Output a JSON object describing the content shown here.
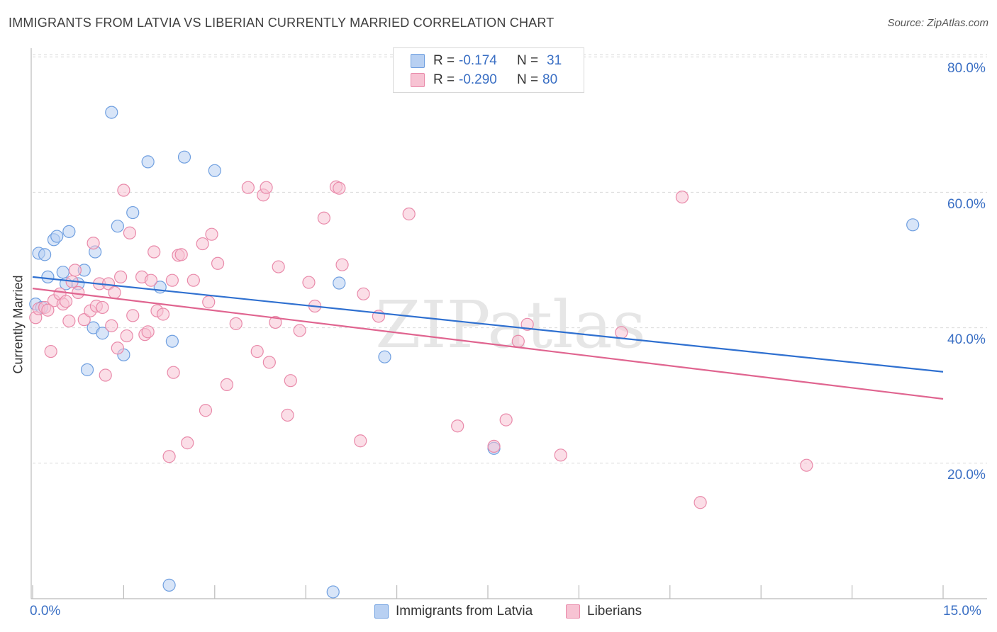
{
  "title": "IMMIGRANTS FROM LATVIA VS LIBERIAN CURRENTLY MARRIED CORRELATION CHART",
  "source": "Source: ZipAtlas.com",
  "watermark": "ZIPatlas",
  "colors": {
    "latvia": "#6f9fe0",
    "latvia_fill": "#b8d0f2",
    "latvia_line": "#2f70d0",
    "liberia": "#e98aaa",
    "liberia_fill": "#f7c3d3",
    "liberia_line": "#e06590",
    "accent_text": "#3a6fc4",
    "grid": "#d9d9d9"
  },
  "legend": {
    "rows": [
      {
        "r_label": "R =",
        "r_value": "-0.174",
        "n_label": "N =",
        "n_value": "31"
      },
      {
        "r_label": "R =",
        "r_value": "-0.290",
        "n_label": "N = ",
        "n_value": "80"
      }
    ]
  },
  "chart_data": {
    "type": "scatter",
    "title": "IMMIGRANTS FROM LATVIA VS LIBERIAN CURRENTLY MARRIED CORRELATION CHART",
    "xlabel": "",
    "ylabel": "Currently Married",
    "xlim": [
      0,
      15
    ],
    "ylim": [
      0,
      82
    ],
    "x_tick_labels": [
      "0.0%",
      "15.0%"
    ],
    "y_ticks": [
      20,
      40,
      60,
      80
    ],
    "y_tick_labels": [
      "20.0%",
      "40.0%",
      "60.0%",
      "80.0%"
    ],
    "grid": true,
    "legend_position": "top-center",
    "series": [
      {
        "name": "Immigrants from Latvia",
        "r": -0.174,
        "n": 31,
        "trend": {
          "x": [
            0,
            15
          ],
          "y": [
            47.5,
            33.5
          ]
        },
        "points": [
          {
            "x": 0.1,
            "y": 51.0
          },
          {
            "x": 0.2,
            "y": 50.8
          },
          {
            "x": 0.25,
            "y": 47.5
          },
          {
            "x": 0.35,
            "y": 53.0
          },
          {
            "x": 0.4,
            "y": 53.5
          },
          {
            "x": 0.5,
            "y": 48.2
          },
          {
            "x": 0.55,
            "y": 46.5
          },
          {
            "x": 0.6,
            "y": 54.2
          },
          {
            "x": 0.75,
            "y": 46.5
          },
          {
            "x": 0.85,
            "y": 48.5
          },
          {
            "x": 0.9,
            "y": 33.8
          },
          {
            "x": 1.0,
            "y": 40.0
          },
          {
            "x": 1.03,
            "y": 51.2
          },
          {
            "x": 1.15,
            "y": 39.2
          },
          {
            "x": 1.3,
            "y": 71.8
          },
          {
            "x": 1.4,
            "y": 55.0
          },
          {
            "x": 1.5,
            "y": 36.0
          },
          {
            "x": 1.65,
            "y": 57.0
          },
          {
            "x": 1.9,
            "y": 64.5
          },
          {
            "x": 2.1,
            "y": 46.0
          },
          {
            "x": 2.25,
            "y": 2.0
          },
          {
            "x": 2.3,
            "y": 38.0
          },
          {
            "x": 2.5,
            "y": 65.2
          },
          {
            "x": 3.0,
            "y": 63.2
          },
          {
            "x": 4.95,
            "y": 1.0
          },
          {
            "x": 5.05,
            "y": 46.6
          },
          {
            "x": 5.8,
            "y": 35.7
          },
          {
            "x": 7.6,
            "y": 22.2
          },
          {
            "x": 14.5,
            "y": 55.2
          },
          {
            "x": 0.05,
            "y": 43.5
          },
          {
            "x": 0.15,
            "y": 43.0
          }
        ]
      },
      {
        "name": "Liberians",
        "r": -0.29,
        "n": 80,
        "trend": {
          "x": [
            0,
            15
          ],
          "y": [
            45.8,
            29.5
          ]
        },
        "points": [
          {
            "x": 0.05,
            "y": 41.5
          },
          {
            "x": 0.1,
            "y": 42.8
          },
          {
            "x": 0.2,
            "y": 43.0
          },
          {
            "x": 0.3,
            "y": 36.5
          },
          {
            "x": 0.35,
            "y": 44.0
          },
          {
            "x": 0.45,
            "y": 45.0
          },
          {
            "x": 0.5,
            "y": 43.5
          },
          {
            "x": 0.6,
            "y": 41.0
          },
          {
            "x": 0.65,
            "y": 46.8
          },
          {
            "x": 0.7,
            "y": 48.5
          },
          {
            "x": 0.75,
            "y": 45.2
          },
          {
            "x": 0.85,
            "y": 41.2
          },
          {
            "x": 0.95,
            "y": 42.5
          },
          {
            "x": 1.0,
            "y": 52.5
          },
          {
            "x": 1.05,
            "y": 43.2
          },
          {
            "x": 1.1,
            "y": 46.5
          },
          {
            "x": 1.15,
            "y": 43.0
          },
          {
            "x": 1.2,
            "y": 33.0
          },
          {
            "x": 1.25,
            "y": 46.5
          },
          {
            "x": 1.3,
            "y": 40.3
          },
          {
            "x": 1.35,
            "y": 45.2
          },
          {
            "x": 1.4,
            "y": 37.0
          },
          {
            "x": 1.5,
            "y": 60.3
          },
          {
            "x": 1.55,
            "y": 38.8
          },
          {
            "x": 1.6,
            "y": 54.0
          },
          {
            "x": 1.65,
            "y": 41.8
          },
          {
            "x": 1.8,
            "y": 47.5
          },
          {
            "x": 1.85,
            "y": 39.0
          },
          {
            "x": 1.9,
            "y": 39.4
          },
          {
            "x": 1.95,
            "y": 47.0
          },
          {
            "x": 2.0,
            "y": 51.2
          },
          {
            "x": 2.05,
            "y": 42.5
          },
          {
            "x": 2.15,
            "y": 42.0
          },
          {
            "x": 2.25,
            "y": 21.0
          },
          {
            "x": 2.3,
            "y": 47.0
          },
          {
            "x": 2.32,
            "y": 33.4
          },
          {
            "x": 2.4,
            "y": 50.7
          },
          {
            "x": 2.45,
            "y": 50.8
          },
          {
            "x": 2.55,
            "y": 23.0
          },
          {
            "x": 2.65,
            "y": 47.0
          },
          {
            "x": 2.8,
            "y": 52.4
          },
          {
            "x": 2.85,
            "y": 27.8
          },
          {
            "x": 2.9,
            "y": 43.8
          },
          {
            "x": 2.95,
            "y": 53.8
          },
          {
            "x": 3.05,
            "y": 49.5
          },
          {
            "x": 3.2,
            "y": 31.6
          },
          {
            "x": 3.35,
            "y": 40.6
          },
          {
            "x": 3.55,
            "y": 60.7
          },
          {
            "x": 3.7,
            "y": 36.5
          },
          {
            "x": 3.8,
            "y": 59.6
          },
          {
            "x": 3.85,
            "y": 60.7
          },
          {
            "x": 3.9,
            "y": 34.9
          },
          {
            "x": 4.0,
            "y": 40.8
          },
          {
            "x": 4.05,
            "y": 49.0
          },
          {
            "x": 4.2,
            "y": 27.1
          },
          {
            "x": 4.25,
            "y": 32.2
          },
          {
            "x": 4.4,
            "y": 39.6
          },
          {
            "x": 4.55,
            "y": 46.7
          },
          {
            "x": 4.65,
            "y": 43.2
          },
          {
            "x": 4.8,
            "y": 56.2
          },
          {
            "x": 5.0,
            "y": 60.8
          },
          {
            "x": 5.05,
            "y": 60.6
          },
          {
            "x": 5.1,
            "y": 49.3
          },
          {
            "x": 5.4,
            "y": 23.3
          },
          {
            "x": 5.45,
            "y": 45.0
          },
          {
            "x": 5.7,
            "y": 41.7
          },
          {
            "x": 6.2,
            "y": 56.8
          },
          {
            "x": 7.0,
            "y": 25.5
          },
          {
            "x": 7.6,
            "y": 22.5
          },
          {
            "x": 7.8,
            "y": 26.4
          },
          {
            "x": 8.0,
            "y": 38.0
          },
          {
            "x": 8.15,
            "y": 40.5
          },
          {
            "x": 8.7,
            "y": 21.2
          },
          {
            "x": 9.7,
            "y": 39.3
          },
          {
            "x": 10.7,
            "y": 59.3
          },
          {
            "x": 11.0,
            "y": 14.2
          },
          {
            "x": 12.75,
            "y": 19.7
          },
          {
            "x": 0.25,
            "y": 42.6
          },
          {
            "x": 0.55,
            "y": 43.9
          },
          {
            "x": 1.45,
            "y": 47.5
          }
        ]
      }
    ]
  }
}
